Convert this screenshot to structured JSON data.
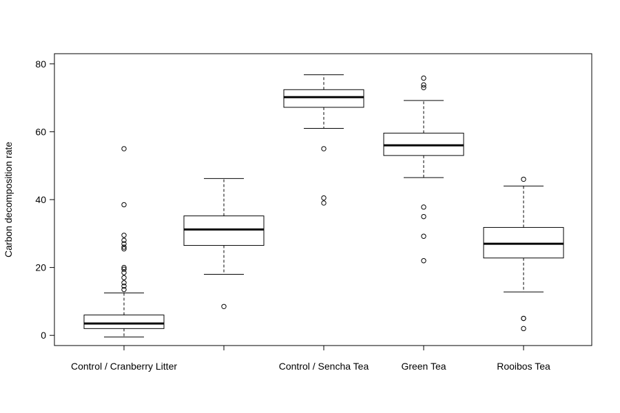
{
  "chart_data": {
    "type": "box",
    "title": "",
    "xlabel": "",
    "ylabel": "Carbon decomposition rate",
    "ylim": [
      -3,
      83
    ],
    "yticks": [
      0,
      20,
      40,
      60,
      80
    ],
    "grid": false,
    "legend": "none",
    "categories": [
      "Control / Cranberry Litter",
      "",
      "Control / Sencha Tea",
      "Green Tea",
      "Rooibos Tea"
    ],
    "boxes": [
      {
        "whisker_low": -0.5,
        "q1": 2.0,
        "median": 3.5,
        "q3": 6.0,
        "whisker_high": 12.5,
        "outliers": [
          13.5,
          14.5,
          15.5,
          17.0,
          18.5,
          19.5,
          20.0,
          25.5,
          26.0,
          27.0,
          28.0,
          29.5,
          38.5,
          55.0
        ]
      },
      {
        "whisker_low": 18.0,
        "q1": 26.5,
        "median": 31.2,
        "q3": 35.2,
        "whisker_high": 46.2,
        "outliers": [
          8.5
        ]
      },
      {
        "whisker_low": 61.0,
        "q1": 67.2,
        "median": 70.2,
        "q3": 72.4,
        "whisker_high": 76.8,
        "outliers": [
          55.0,
          40.5,
          39.0
        ]
      },
      {
        "whisker_low": 46.5,
        "q1": 53.0,
        "median": 56.0,
        "q3": 59.6,
        "whisker_high": 69.2,
        "outliers": [
          73.0,
          73.8,
          75.8,
          37.8,
          35.0,
          29.2,
          22.0
        ]
      },
      {
        "whisker_low": 12.8,
        "q1": 22.8,
        "median": 27.0,
        "q3": 31.8,
        "whisker_high": 44.0,
        "outliers": [
          46.0,
          5.0,
          5.0,
          2.0
        ]
      }
    ]
  }
}
